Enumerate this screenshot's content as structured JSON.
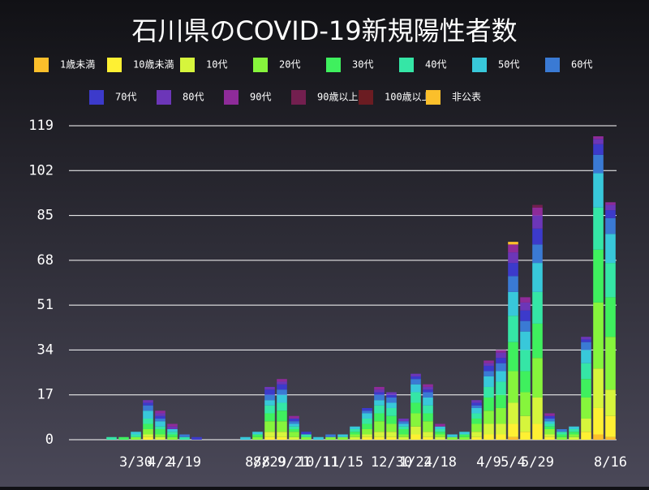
{
  "chart_data": {
    "type": "bar",
    "stacked": true,
    "title": "石川県のCOVID-19新規陽性者数",
    "categories": [
      null,
      null,
      null,
      null,
      null,
      "3/30",
      null,
      "4/2",
      null,
      "4/19",
      null,
      null,
      null,
      null,
      null,
      "8/8",
      "8/29",
      null,
      "9/21",
      null,
      "10/11",
      null,
      "11/15",
      null,
      null,
      null,
      "12/30",
      null,
      "1/24",
      null,
      "2/18",
      null,
      null,
      null,
      "4/9",
      null,
      "5/4",
      null,
      "5/29",
      null,
      null,
      null,
      null,
      null,
      "8/16"
    ],
    "series": [
      {
        "name": "1歳未満",
        "color": "#fbbf2b",
        "values": [
          0,
          0,
          0,
          0,
          0,
          0,
          0,
          0,
          0,
          0,
          0,
          0,
          0,
          0,
          0,
          0,
          0,
          0,
          0,
          0,
          0,
          0,
          0,
          0,
          0,
          0,
          0,
          0,
          0,
          0,
          0,
          0,
          0,
          0,
          0,
          0,
          1,
          0,
          0,
          0,
          0,
          0,
          0,
          2,
          1
        ]
      },
      {
        "name": "10歳未満",
        "color": "#fef033",
        "values": [
          0,
          0,
          0,
          0,
          0,
          0,
          1,
          0,
          0,
          0,
          0,
          0,
          0,
          0,
          0,
          0,
          1,
          1,
          0,
          0,
          0,
          0,
          0,
          0,
          1,
          1,
          1,
          0,
          2,
          1,
          0,
          0,
          0,
          1,
          2,
          2,
          5,
          3,
          6,
          1,
          0,
          0,
          3,
          10,
          8
        ]
      },
      {
        "name": "10代",
        "color": "#d6f53c",
        "values": [
          0,
          0,
          0,
          0,
          0,
          0,
          1,
          1,
          0,
          0,
          0,
          0,
          0,
          0,
          0,
          0,
          2,
          2,
          1,
          0,
          0,
          0,
          0,
          1,
          1,
          2,
          2,
          1,
          3,
          2,
          1,
          0,
          0,
          2,
          4,
          4,
          8,
          6,
          10,
          1,
          0,
          1,
          5,
          15,
          10
        ]
      },
      {
        "name": "20代",
        "color": "#86f53c",
        "values": [
          0,
          0,
          0,
          0,
          0,
          1,
          2,
          1,
          1,
          0,
          0,
          0,
          0,
          0,
          0,
          1,
          4,
          4,
          2,
          1,
          0,
          1,
          1,
          1,
          2,
          4,
          3,
          1,
          5,
          4,
          1,
          1,
          1,
          3,
          5,
          6,
          12,
          9,
          15,
          2,
          1,
          1,
          8,
          25,
          20
        ]
      },
      {
        "name": "30代",
        "color": "#3ff05e",
        "values": [
          0,
          0,
          0,
          0,
          1,
          0,
          2,
          2,
          1,
          0,
          0,
          0,
          0,
          0,
          0,
          1,
          3,
          4,
          1,
          0,
          0,
          0,
          0,
          1,
          2,
          3,
          3,
          2,
          4,
          3,
          1,
          0,
          1,
          2,
          5,
          5,
          11,
          8,
          13,
          1,
          1,
          1,
          7,
          20,
          15
        ]
      },
      {
        "name": "40代",
        "color": "#35e6a6",
        "values": [
          0,
          0,
          0,
          1,
          0,
          1,
          2,
          1,
          1,
          1,
          0,
          0,
          0,
          0,
          0,
          0,
          3,
          3,
          1,
          1,
          0,
          0,
          0,
          1,
          2,
          3,
          3,
          1,
          4,
          3,
          1,
          0,
          0,
          2,
          4,
          5,
          10,
          8,
          12,
          1,
          1,
          1,
          6,
          16,
          13
        ]
      },
      {
        "name": "50代",
        "color": "#38c8da",
        "values": [
          0,
          0,
          0,
          0,
          0,
          1,
          3,
          2,
          1,
          0,
          0,
          0,
          0,
          0,
          1,
          1,
          2,
          3,
          1,
          0,
          1,
          0,
          1,
          1,
          2,
          2,
          2,
          1,
          3,
          3,
          1,
          1,
          1,
          2,
          4,
          4,
          9,
          7,
          11,
          1,
          0,
          1,
          5,
          13,
          11
        ]
      },
      {
        "name": "60代",
        "color": "#3a7ad4",
        "values": [
          0,
          0,
          0,
          0,
          0,
          0,
          2,
          1,
          0,
          1,
          0,
          0,
          0,
          0,
          0,
          0,
          2,
          2,
          1,
          0,
          0,
          1,
          0,
          0,
          1,
          2,
          2,
          1,
          2,
          2,
          0,
          0,
          0,
          1,
          2,
          3,
          6,
          4,
          7,
          1,
          1,
          0,
          3,
          7,
          6
        ]
      },
      {
        "name": "70代",
        "color": "#3c3acb",
        "values": [
          0,
          0,
          0,
          0,
          0,
          0,
          1,
          1,
          0,
          0,
          1,
          0,
          0,
          0,
          0,
          0,
          2,
          2,
          1,
          1,
          0,
          0,
          0,
          0,
          1,
          1,
          1,
          0,
          1,
          1,
          0,
          0,
          0,
          1,
          2,
          2,
          5,
          4,
          6,
          1,
          0,
          0,
          1,
          4,
          3
        ]
      },
      {
        "name": "80代",
        "color": "#6c36b8",
        "values": [
          0,
          0,
          0,
          0,
          0,
          0,
          1,
          1,
          1,
          0,
          0,
          0,
          0,
          0,
          0,
          0,
          1,
          1,
          0,
          0,
          0,
          0,
          0,
          0,
          0,
          1,
          1,
          1,
          1,
          1,
          0,
          0,
          0,
          1,
          1,
          2,
          4,
          3,
          5,
          0,
          0,
          0,
          1,
          2,
          2
        ]
      },
      {
        "name": "90代",
        "color": "#8e2b99",
        "values": [
          0,
          0,
          0,
          0,
          0,
          0,
          0,
          1,
          1,
          0,
          0,
          0,
          0,
          0,
          0,
          0,
          0,
          1,
          1,
          0,
          0,
          0,
          0,
          0,
          0,
          1,
          0,
          0,
          0,
          1,
          1,
          0,
          0,
          0,
          1,
          1,
          3,
          2,
          3,
          1,
          0,
          0,
          0,
          1,
          1
        ]
      },
      {
        "name": "90歳以上",
        "color": "#731f4f",
        "values": [
          0,
          0,
          0,
          0,
          0,
          0,
          0,
          0,
          0,
          0,
          0,
          0,
          0,
          0,
          0,
          0,
          0,
          0,
          0,
          0,
          0,
          0,
          0,
          0,
          0,
          0,
          0,
          0,
          0,
          0,
          0,
          0,
          0,
          0,
          0,
          0,
          0,
          0,
          1,
          0,
          0,
          0,
          0,
          0,
          0
        ]
      },
      {
        "name": "100歳以上",
        "color": "#6b1c22",
        "values": [
          0,
          0,
          0,
          0,
          0,
          0,
          0,
          0,
          0,
          0,
          0,
          0,
          0,
          0,
          0,
          0,
          0,
          0,
          0,
          0,
          0,
          0,
          0,
          0,
          0,
          0,
          0,
          0,
          0,
          0,
          0,
          0,
          0,
          0,
          0,
          0,
          0,
          0,
          0,
          0,
          0,
          0,
          0,
          0,
          0
        ]
      },
      {
        "name": "非公表",
        "color": "#fbbf2b",
        "values": [
          0,
          0,
          0,
          0,
          0,
          0,
          0,
          0,
          0,
          0,
          0,
          0,
          0,
          0,
          0,
          0,
          0,
          0,
          0,
          0,
          0,
          0,
          0,
          0,
          0,
          0,
          0,
          0,
          0,
          0,
          0,
          0,
          0,
          0,
          0,
          0,
          1,
          0,
          0,
          0,
          0,
          0,
          0,
          0,
          0
        ]
      }
    ],
    "ylim": [
      0,
      119
    ],
    "yticks": [
      0,
      17,
      34,
      51,
      68,
      85,
      102,
      119
    ],
    "grid": true
  }
}
